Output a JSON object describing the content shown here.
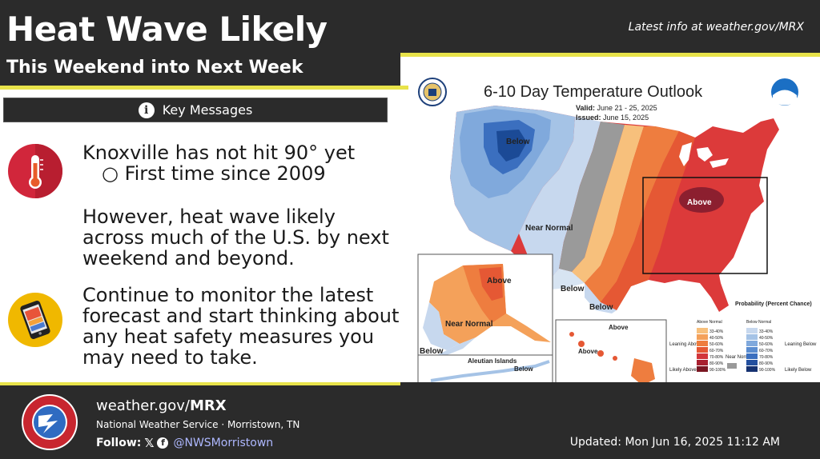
{
  "header": {
    "title": "Heat Wave Likely",
    "subtitle": "This Weekend into Next Week",
    "latest": "Latest info at weather.gov/MRX"
  },
  "key_messages": {
    "label": "Key Messages",
    "msg1": "Knoxville has not hit 90° yet",
    "msg1_sub": "○ First time since 2009",
    "msg2": "However, heat wave likely across much of the U.S. by next weekend and beyond.",
    "msg3": "Continue to monitor the latest forecast and start thinking about any heat safety measures you may need to take."
  },
  "map": {
    "title": "6-10 Day Temperature Outlook",
    "valid_label": "Valid:",
    "valid_value": "June 21 - 25, 2025",
    "issued_label": "Issued:",
    "issued_value": "June 15, 2025",
    "labels": {
      "below_nw": "Below",
      "above_east": "Above",
      "near_normal": "Near Normal",
      "below_sw": "Below",
      "below_tx": "Below",
      "ak_above": "Above",
      "ak_near": "Near Normal",
      "ak_below": "Below",
      "aleutian": "Aleutian Islands",
      "aleutian_below": "Below",
      "hi_above_1": "Above",
      "hi_above_2": "Above"
    },
    "legend": {
      "title": "Probability (Percent Chance)",
      "above_header": "Above Normal",
      "below_header": "Below Normal",
      "leaning_above": "Leaning Above",
      "likely_above": "Likely Above",
      "near_normal": "Near Normal",
      "leaning_below": "Leaning Below",
      "likely_below": "Likely Below",
      "above_ranges": [
        "33-40%",
        "40-50%",
        "50-60%",
        "60-70%",
        "70-80%",
        "80-90%",
        "90-100%"
      ],
      "below_ranges": [
        "33-40%",
        "40-50%",
        "50-60%",
        "60-70%",
        "70-80%",
        "80-90%",
        "90-100%"
      ],
      "above_colors": [
        "#f7c07c",
        "#f4a15a",
        "#ee7d3f",
        "#e55834",
        "#d2363b",
        "#a8202f",
        "#7a1622"
      ],
      "below_colors": [
        "#c7d8ee",
        "#a5c3e6",
        "#80a9dc",
        "#5b8dd0",
        "#3b6fbf",
        "#24509f",
        "#163271"
      ]
    }
  },
  "footer": {
    "url_prefix": "weather.gov/",
    "url_office": "MRX",
    "office": "National Weather Service · Morristown, TN",
    "follow_label": "Follow:",
    "handle": "@NWSMorristown",
    "updated": "Updated: Mon Jun 16, 2025 11:12 AM"
  },
  "colors": {
    "accent_yellow": "#e8e34a",
    "dark_bg": "#2b2b2b"
  }
}
